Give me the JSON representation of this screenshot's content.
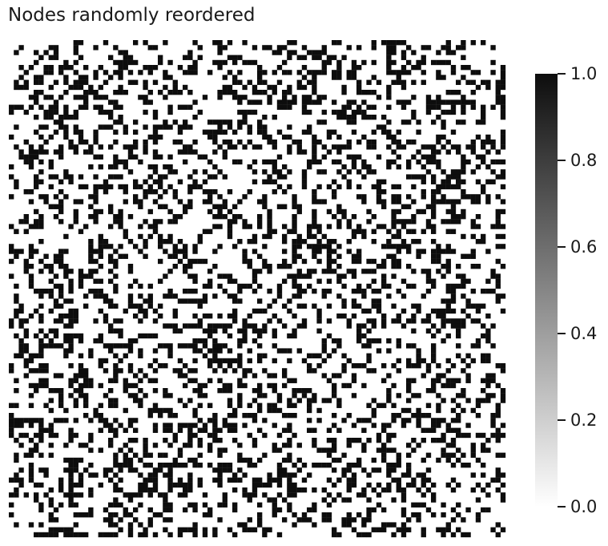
{
  "chart_data": {
    "type": "heatmap",
    "title": "Nodes randomly reordered",
    "xlabel": "",
    "ylabel": "",
    "matrix_size": 100,
    "value_range": [
      0,
      1
    ],
    "density": 0.33,
    "symmetric": true,
    "diagonal": 0,
    "colormap": {
      "low_color": "#ffffff",
      "high_color": "#0d0d0d",
      "low_value": 0.0,
      "high_value": 1.0
    },
    "colorbar": {
      "ticks": [
        0.0,
        0.2,
        0.4,
        0.6,
        0.8,
        1.0
      ],
      "tick_labels": [
        "0.0",
        "0.2",
        "0.4",
        "0.6",
        "0.8",
        "1.0"
      ]
    },
    "grid": false,
    "legend": "none"
  }
}
